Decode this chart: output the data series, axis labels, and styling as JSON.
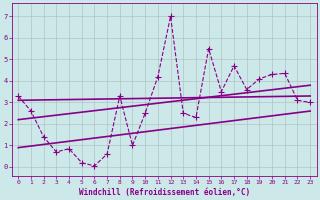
{
  "title": "",
  "xlabel": "Windchill (Refroidissement éolien,°C)",
  "ylabel": "",
  "bg_color": "#cce8e8",
  "line_color": "#880088",
  "grid_color": "#aabbbb",
  "axis_color": "#880088",
  "x_ticks": [
    0,
    1,
    2,
    3,
    4,
    5,
    6,
    7,
    8,
    9,
    10,
    11,
    12,
    13,
    14,
    15,
    16,
    17,
    18,
    19,
    20,
    21,
    22,
    23
  ],
  "y_ticks": [
    0,
    1,
    2,
    3,
    4,
    5,
    6,
    7
  ],
  "xlim": [
    -0.5,
    23.5
  ],
  "ylim": [
    -0.4,
    7.6
  ],
  "series": [
    {
      "x": [
        0,
        1,
        2,
        3,
        4,
        5,
        6,
        7,
        8,
        9,
        10,
        11,
        12,
        13,
        14,
        15,
        16,
        17,
        18,
        19,
        20,
        21,
        22,
        23
      ],
      "y": [
        3.3,
        2.6,
        1.4,
        0.7,
        0.85,
        0.2,
        0.05,
        0.6,
        3.3,
        1.0,
        2.5,
        4.2,
        7.0,
        2.5,
        2.3,
        5.5,
        3.5,
        4.7,
        3.6,
        4.1,
        4.3,
        4.35,
        3.1,
        3.0
      ],
      "linestyle": "--",
      "linewidth": 0.8,
      "marker": "+",
      "markersize": 4
    },
    {
      "x": [
        0,
        23
      ],
      "y": [
        3.1,
        3.3
      ],
      "linestyle": "-",
      "linewidth": 1.2,
      "marker": null,
      "markersize": 0
    },
    {
      "x": [
        0,
        23
      ],
      "y": [
        2.2,
        3.8
      ],
      "linestyle": "-",
      "linewidth": 1.2,
      "marker": null,
      "markersize": 0
    },
    {
      "x": [
        0,
        23
      ],
      "y": [
        0.9,
        2.6
      ],
      "linestyle": "-",
      "linewidth": 1.2,
      "marker": null,
      "markersize": 0
    }
  ]
}
